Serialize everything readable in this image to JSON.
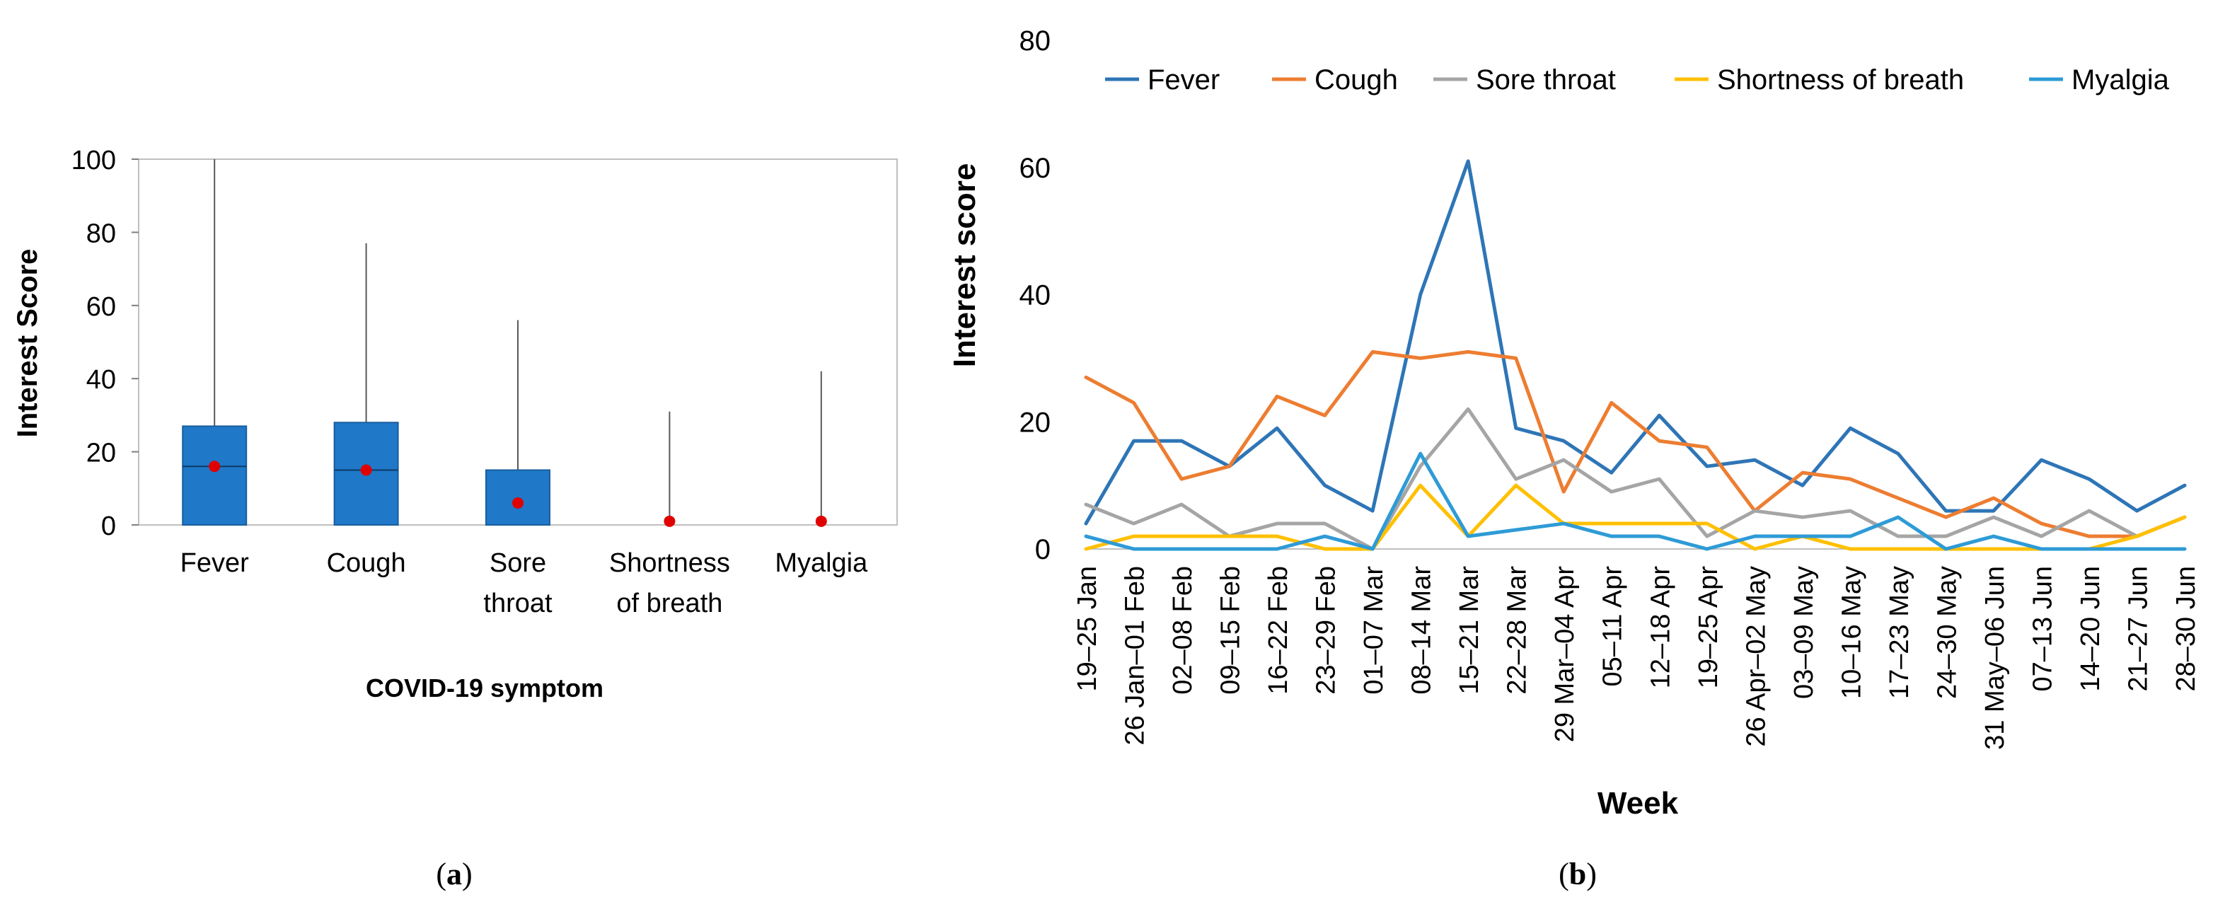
{
  "colors": {
    "fever": "#2E75B6",
    "cough": "#ED7D31",
    "sore_throat": "#A5A5A5",
    "shortness_of_breath": "#FFC000",
    "myalgia": "#2E9BD6",
    "box_fill": "#1F78C8",
    "mean_dot": "#E00000",
    "whisker": "#595959",
    "axis": "#7F7F7F"
  },
  "panel_a": {
    "caption_open": "(",
    "caption_letter": "a",
    "caption_close": ")"
  },
  "panel_b": {
    "caption_open": "(",
    "caption_letter": "b",
    "caption_close": ")"
  },
  "chart_data": [
    {
      "type": "boxplot",
      "title": "",
      "xlabel": "COVID-19 symptom",
      "ylabel": "Interest Score",
      "ylim": [
        0,
        100
      ],
      "yticks": [
        "0",
        "20",
        "40",
        "60",
        "80",
        "100"
      ],
      "categories": [
        {
          "lines": [
            "Fever"
          ]
        },
        {
          "lines": [
            "Cough"
          ]
        },
        {
          "lines": [
            "Sore",
            "throat"
          ]
        },
        {
          "lines": [
            "Shortness",
            "of breath"
          ]
        },
        {
          "lines": [
            "Myalgia"
          ]
        }
      ],
      "boxes": [
        {
          "name": "Fever",
          "min": 0,
          "q1": 0,
          "median": 16,
          "q3": 27,
          "max": 100,
          "mean": 16
        },
        {
          "name": "Cough",
          "min": 0,
          "q1": 0,
          "median": 15,
          "q3": 28,
          "max": 77,
          "mean": 15
        },
        {
          "name": "Sore throat",
          "min": 0,
          "q1": 0,
          "median": 0,
          "q3": 15,
          "max": 56,
          "mean": 6
        },
        {
          "name": "Shortness of breath",
          "min": 0,
          "q1": 0,
          "median": 0,
          "q3": 0,
          "max": 31,
          "mean": 1
        },
        {
          "name": "Myalgia",
          "min": 0,
          "q1": 0,
          "median": 0,
          "q3": 0,
          "max": 42,
          "mean": 1
        }
      ]
    },
    {
      "type": "line",
      "title": "",
      "xlabel": "Week",
      "ylabel": "Interest score",
      "ylim": [
        0,
        80
      ],
      "yticks": [
        "0",
        "20",
        "40",
        "60",
        "80"
      ],
      "categories": [
        "19–25 Jan",
        "26 Jan–01 Feb",
        "02–08 Feb",
        "09–15 Feb",
        "16–22 Feb",
        "23–29 Feb",
        "01–07 Mar",
        "08–14 Mar",
        "15–21 Mar",
        "22–28 Mar",
        "29 Mar–04 Apr",
        "05–11 Apr",
        "12–18 Apr",
        "19–25 Apr",
        "26 Apr–02 May",
        "03–09 May",
        "10–16 May",
        "17–23 May",
        "24–30 May",
        "31 May–06 Jun",
        "07–13 Jun",
        "14–20 Jun",
        "21–27 Jun",
        "28–30 Jun"
      ],
      "legend_position": "top",
      "series": [
        {
          "name": "Fever",
          "color_key": "fever",
          "values": [
            4,
            17,
            17,
            13,
            19,
            10,
            6,
            40,
            61,
            19,
            17,
            12,
            21,
            13,
            14,
            10,
            19,
            15,
            6,
            6,
            14,
            11,
            6,
            10
          ]
        },
        {
          "name": "Cough",
          "color_key": "cough",
          "values": [
            27,
            23,
            11,
            13,
            24,
            21,
            31,
            30,
            31,
            30,
            9,
            23,
            17,
            16,
            6,
            12,
            11,
            8,
            5,
            8,
            4,
            2,
            2,
            5
          ]
        },
        {
          "name": "Sore throat",
          "color_key": "sore_throat",
          "values": [
            7,
            4,
            7,
            2,
            4,
            4,
            0,
            13,
            22,
            11,
            14,
            9,
            11,
            2,
            6,
            5,
            6,
            2,
            2,
            5,
            2,
            6,
            2,
            5
          ]
        },
        {
          "name": "Shortness of breath",
          "color_key": "shortness_of_breath",
          "values": [
            0,
            2,
            2,
            2,
            2,
            0,
            0,
            10,
            2,
            10,
            4,
            4,
            4,
            4,
            0,
            2,
            0,
            0,
            0,
            0,
            0,
            0,
            2,
            5
          ]
        },
        {
          "name": "Myalgia",
          "color_key": "myalgia",
          "values": [
            2,
            0,
            0,
            0,
            0,
            2,
            0,
            15,
            2,
            3,
            4,
            2,
            2,
            0,
            2,
            2,
            2,
            5,
            0,
            2,
            0,
            0,
            0,
            0
          ]
        }
      ]
    }
  ]
}
